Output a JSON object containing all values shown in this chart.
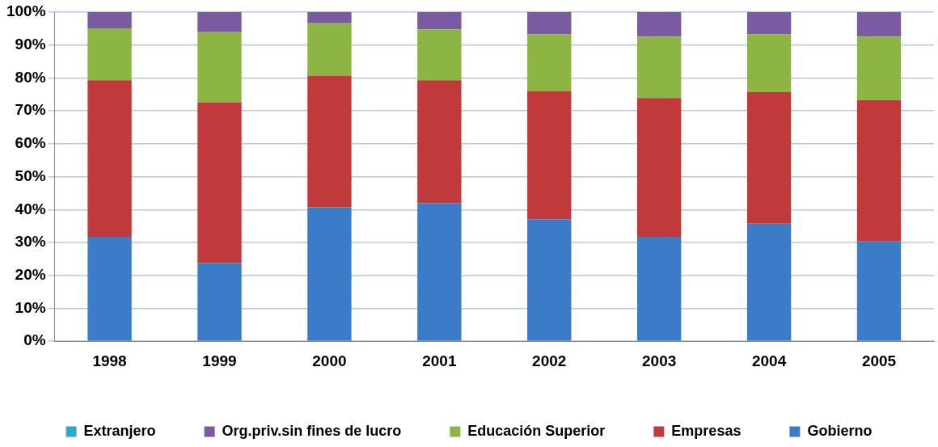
{
  "chart_data": {
    "type": "bar",
    "stacked": true,
    "categories": [
      "1998",
      "1999",
      "2000",
      "2001",
      "2002",
      "2003",
      "2004",
      "2005"
    ],
    "series": [
      {
        "name": "Gobierno",
        "color": "#3c7bc8",
        "values": [
          31.7,
          23.8,
          40.7,
          42.0,
          37.1,
          31.7,
          35.7,
          30.3
        ]
      },
      {
        "name": "Empresas",
        "color": "#c0393b",
        "values": [
          47.6,
          48.8,
          40.0,
          37.3,
          38.9,
          42.2,
          40.0,
          43.0
        ]
      },
      {
        "name": "Educación Superior",
        "color": "#8db543",
        "values": [
          15.8,
          21.3,
          15.9,
          15.5,
          17.3,
          18.7,
          17.6,
          19.3
        ]
      },
      {
        "name": "Org.priv.sin fines de lucro",
        "color": "#7a5aa0",
        "values": [
          4.9,
          6.1,
          3.4,
          5.2,
          6.7,
          7.4,
          6.7,
          7.4
        ]
      },
      {
        "name": "Extranjero",
        "color": "#2ea8c8",
        "values": [
          0,
          0,
          0,
          0,
          0,
          0,
          0,
          0
        ]
      }
    ],
    "ylim": [
      0,
      100
    ],
    "yticks": [
      {
        "value": 0,
        "label": "0%"
      },
      {
        "value": 10,
        "label": "10%"
      },
      {
        "value": 20,
        "label": "20%"
      },
      {
        "value": 30,
        "label": "30%"
      },
      {
        "value": 40,
        "label": "40%"
      },
      {
        "value": 50,
        "label": "50%"
      },
      {
        "value": 60,
        "label": "60%"
      },
      {
        "value": 70,
        "label": "70%"
      },
      {
        "value": 80,
        "label": "80%"
      },
      {
        "value": 90,
        "label": "90%"
      },
      {
        "value": 100,
        "label": "100%"
      }
    ],
    "grid": "y",
    "legend": "bottom"
  }
}
